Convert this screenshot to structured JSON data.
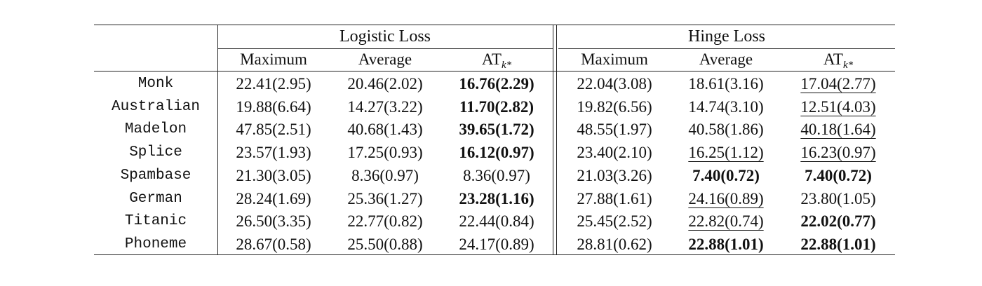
{
  "groups": [
    "Logistic Loss",
    "Hinge Loss"
  ],
  "columns": [
    "Maximum",
    "Average",
    "AT",
    "Maximum",
    "Average",
    "AT"
  ],
  "at_subscript": "k*",
  "rows": [
    {
      "name": "Monk",
      "cells": [
        "22.41(2.95)",
        "20.46(2.02)",
        "16.76(2.29)",
        "22.04(3.08)",
        "18.61(3.16)",
        "17.04(2.77)"
      ],
      "bold": [
        2
      ],
      "underline": [
        5
      ]
    },
    {
      "name": "Australian",
      "cells": [
        "19.88(6.64)",
        "14.27(3.22)",
        "11.70(2.82)",
        "19.82(6.56)",
        "14.74(3.10)",
        "12.51(4.03)"
      ],
      "bold": [
        2
      ],
      "underline": [
        5
      ]
    },
    {
      "name": "Madelon",
      "cells": [
        "47.85(2.51)",
        "40.68(1.43)",
        "39.65(1.72)",
        "48.55(1.97)",
        "40.58(1.86)",
        "40.18(1.64)"
      ],
      "bold": [
        2
      ],
      "underline": [
        5
      ]
    },
    {
      "name": "Splice",
      "cells": [
        "23.57(1.93)",
        "17.25(0.93)",
        "16.12(0.97)",
        "23.40(2.10)",
        "16.25(1.12)",
        "16.23(0.97)"
      ],
      "bold": [
        2
      ],
      "underline": [
        4,
        5
      ]
    },
    {
      "name": "Spambase",
      "cells": [
        "21.30(3.05)",
        "8.36(0.97)",
        "8.36(0.97)",
        "21.03(3.26)",
        "7.40(0.72)",
        "7.40(0.72)"
      ],
      "bold": [
        4,
        5
      ],
      "underline": []
    },
    {
      "name": "German",
      "cells": [
        "28.24(1.69)",
        "25.36(1.27)",
        "23.28(1.16)",
        "27.88(1.61)",
        "24.16(0.89)",
        "23.80(1.05)"
      ],
      "bold": [
        2
      ],
      "underline": [
        4
      ]
    },
    {
      "name": "Titanic",
      "cells": [
        "26.50(3.35)",
        "22.77(0.82)",
        "22.44(0.84)",
        "25.45(2.52)",
        "22.82(0.74)",
        "22.02(0.77)"
      ],
      "bold": [
        5
      ],
      "underline": [
        4
      ]
    },
    {
      "name": "Phoneme",
      "cells": [
        "28.67(0.58)",
        "25.50(0.88)",
        "24.17(0.89)",
        "28.81(0.62)",
        "22.88(1.01)",
        "22.88(1.01)"
      ],
      "bold": [
        4,
        5
      ],
      "underline": []
    }
  ]
}
